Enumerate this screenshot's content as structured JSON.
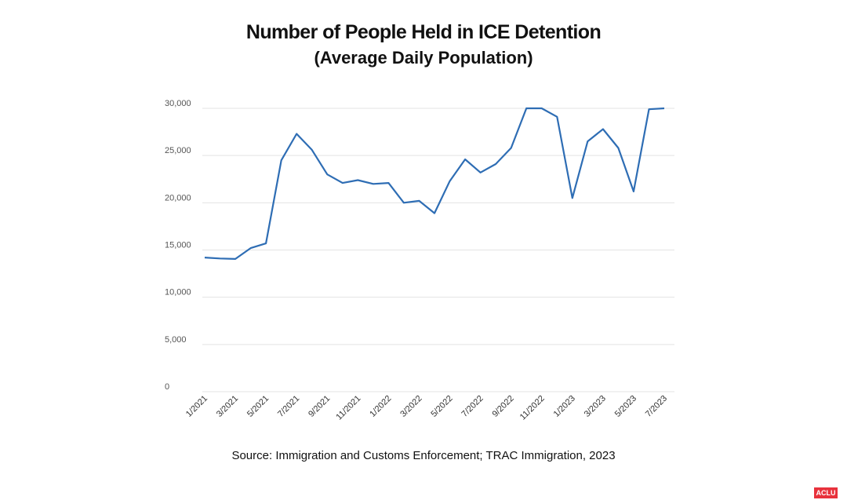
{
  "chart_data": {
    "type": "line",
    "title": "Number of People Held in ICE Detention",
    "subtitle": "(Average Daily Population)",
    "xlabel": "",
    "ylabel": "",
    "ylim": [
      0,
      30000
    ],
    "yticks": [
      "0",
      "5,000",
      "10,000",
      "15,000",
      "20,000",
      "25,000",
      "30,000"
    ],
    "ytick_values": [
      0,
      5000,
      10000,
      15000,
      20000,
      25000,
      30000
    ],
    "xtick_labels": [
      "1/2021",
      "3/2021",
      "5/2021",
      "7/2021",
      "9/2021",
      "11/2021",
      "1/2022",
      "3/2022",
      "5/2022",
      "7/2022",
      "9/2022",
      "11/2022",
      "1/2023",
      "3/2023",
      "5/2023",
      "7/2023"
    ],
    "grid": "horizontal",
    "line_color": "#2e6db4",
    "x": [
      "1/2021",
      "2/2021",
      "3/2021",
      "4/2021",
      "5/2021",
      "6/2021",
      "7/2021",
      "8/2021",
      "9/2021",
      "10/2021",
      "11/2021",
      "12/2021",
      "1/2022",
      "2/2022",
      "3/2022",
      "4/2022",
      "5/2022",
      "6/2022",
      "7/2022",
      "8/2022",
      "9/2022",
      "10/2022",
      "11/2022",
      "12/2022",
      "1/2023",
      "2/2023",
      "3/2023",
      "4/2023",
      "5/2023",
      "6/2023",
      "7/2023"
    ],
    "series": [
      {
        "values": [
          14200,
          14100,
          14050,
          15200,
          15700,
          24500,
          27300,
          25600,
          23000,
          22100,
          22400,
          22000,
          22100,
          20000,
          20200,
          18900,
          22300,
          24600,
          23200,
          24100,
          25800,
          30000,
          30000,
          29100,
          20500,
          26500,
          27800,
          25800,
          21200,
          29900,
          30000
        ]
      }
    ]
  },
  "source": "Source: Immigration and Customs Enforcement; TRAC Immigration, 2023",
  "logo_text": "ACLU"
}
